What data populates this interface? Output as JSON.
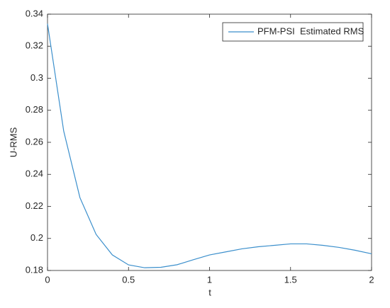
{
  "chart_data": {
    "type": "line",
    "xlabel": "t",
    "ylabel": "U-RMS",
    "x": [
      0,
      0.1,
      0.2,
      0.3,
      0.4,
      0.5,
      0.6,
      0.7,
      0.8,
      0.9,
      1.0,
      1.1,
      1.2,
      1.3,
      1.4,
      1.5,
      1.6,
      1.7,
      1.8,
      1.9,
      2.0
    ],
    "series": [
      {
        "name": "PFM-PSI  Estimated RMS",
        "color": "#3b8fcc",
        "values": [
          0.334,
          0.267,
          0.2255,
          0.2025,
          0.1897,
          0.1835,
          0.1817,
          0.182,
          0.1836,
          0.1867,
          0.1897,
          0.1916,
          0.1935,
          0.1948,
          0.1957,
          0.1966,
          0.1966,
          0.1957,
          0.1944,
          0.1926,
          0.1904
        ]
      }
    ],
    "xlim": [
      0,
      2
    ],
    "xticks": [
      0,
      0.5,
      1,
      1.5,
      2
    ],
    "ylim": [
      0.18,
      0.34
    ],
    "yticks": [
      0.18,
      0.2,
      0.22,
      0.24,
      0.26,
      0.28,
      0.3,
      0.32,
      0.34
    ],
    "grid": false,
    "legend": "northeast"
  }
}
